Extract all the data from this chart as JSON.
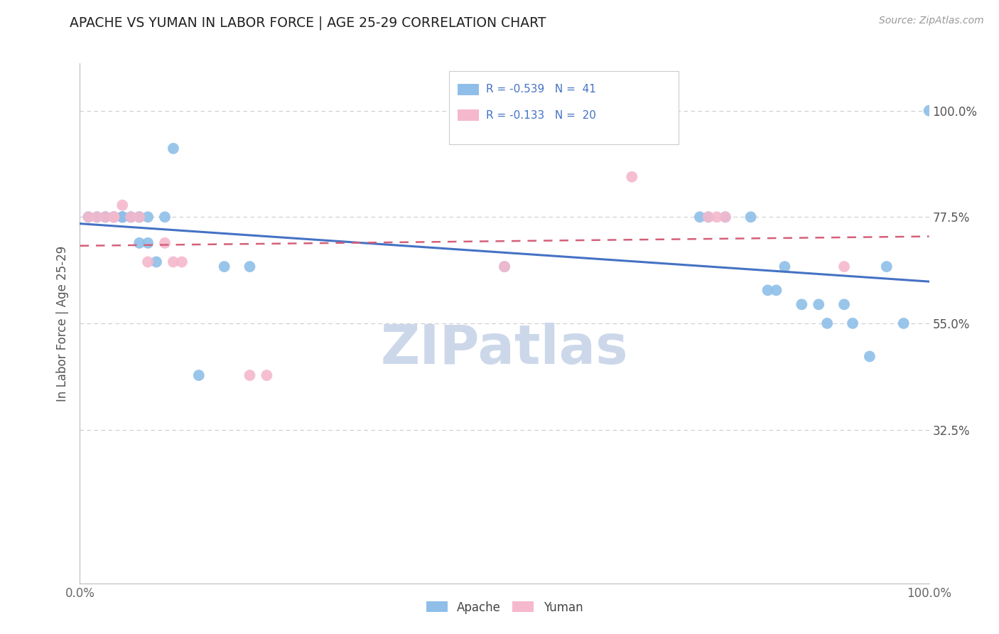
{
  "title": "APACHE VS YUMAN IN LABOR FORCE | AGE 25-29 CORRELATION CHART",
  "source_text": "Source: ZipAtlas.com",
  "ylabel": "In Labor Force | Age 25-29",
  "xlim": [
    0.0,
    1.0
  ],
  "ylim": [
    0.0,
    1.1
  ],
  "xtick_labels": [
    "0.0%",
    "100.0%"
  ],
  "ytick_labels": [
    "32.5%",
    "55.0%",
    "77.5%",
    "100.0%"
  ],
  "ytick_positions": [
    0.325,
    0.55,
    0.775,
    1.0
  ],
  "grid_color": "#cccccc",
  "background_color": "#ffffff",
  "apache_color": "#8fbfe8",
  "yuman_color": "#f5b8cc",
  "apache_line_color": "#4472c4",
  "yuman_line_color": "#d4607a",
  "legend_R_apache": "R = -0.539",
  "legend_N_apache": "N =  41",
  "legend_R_yuman": "R = -0.133",
  "legend_N_yuman": "N =  20",
  "apache_x": [
    0.01,
    0.02,
    0.03,
    0.03,
    0.04,
    0.04,
    0.04,
    0.05,
    0.05,
    0.05,
    0.05,
    0.06,
    0.06,
    0.07,
    0.07,
    0.07,
    0.08,
    0.08,
    0.09,
    0.1,
    0.11,
    0.14,
    0.17,
    0.2,
    0.5,
    0.73,
    0.74,
    0.76,
    0.79,
    0.81,
    0.82,
    0.83,
    0.85,
    0.87,
    0.88,
    0.9,
    0.91,
    0.93,
    0.95,
    0.97,
    1.0
  ],
  "apache_y": [
    0.775,
    0.775,
    0.775,
    0.775,
    0.775,
    0.775,
    0.775,
    0.775,
    0.775,
    0.775,
    0.775,
    0.775,
    0.775,
    0.775,
    0.775,
    0.72,
    0.72,
    0.775,
    0.68,
    0.775,
    0.92,
    0.44,
    0.67,
    0.67,
    0.67,
    0.775,
    0.775,
    0.775,
    0.775,
    0.62,
    0.62,
    0.67,
    0.59,
    0.59,
    0.55,
    0.59,
    0.55,
    0.48,
    0.67,
    0.55,
    1.0
  ],
  "yuman_x": [
    0.01,
    0.02,
    0.03,
    0.04,
    0.04,
    0.05,
    0.06,
    0.07,
    0.08,
    0.1,
    0.11,
    0.12,
    0.2,
    0.22,
    0.5,
    0.65,
    0.74,
    0.75,
    0.76,
    0.9
  ],
  "yuman_y": [
    0.775,
    0.775,
    0.775,
    0.775,
    0.775,
    0.8,
    0.775,
    0.775,
    0.68,
    0.72,
    0.68,
    0.68,
    0.44,
    0.44,
    0.67,
    0.86,
    0.775,
    0.775,
    0.775,
    0.67
  ],
  "watermark_text": "ZIPatlas",
  "watermark_color": "#ccd8ea",
  "watermark_fontsize": 55
}
